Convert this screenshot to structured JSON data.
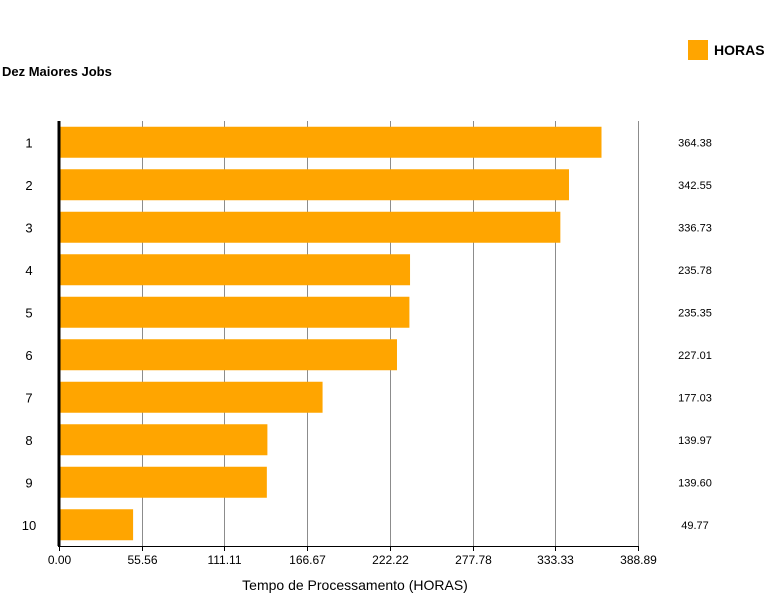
{
  "chart_data": {
    "type": "bar",
    "orientation": "horizontal",
    "title": "Dez Maiores Jobs",
    "xlabel": "Tempo de Processamento (HORAS)",
    "ylabel": "",
    "categories": [
      "1",
      "2",
      "3",
      "4",
      "5",
      "6",
      "7",
      "8",
      "9",
      "10"
    ],
    "series": [
      {
        "name": "HORAS",
        "values": [
          364.38,
          342.55,
          336.73,
          235.78,
          235.35,
          227.01,
          177.03,
          139.97,
          139.6,
          49.77
        ],
        "labels": [
          "364.38",
          "342.55",
          "336.73",
          "235.78",
          "235.35",
          "227.01",
          "177.03",
          "139.97",
          "139.60",
          "49.77"
        ],
        "color": "#FFA500"
      }
    ],
    "xlim": [
      0,
      388.89
    ],
    "xticks": [
      0,
      55.56,
      111.11,
      166.67,
      222.22,
      277.78,
      333.33,
      388.89
    ],
    "xtick_labels": [
      "0.00",
      "55.56",
      "111.11",
      "166.67",
      "222.22",
      "277.78",
      "333.33",
      "388.89"
    ],
    "grid": true,
    "legend_position": "top-right"
  }
}
